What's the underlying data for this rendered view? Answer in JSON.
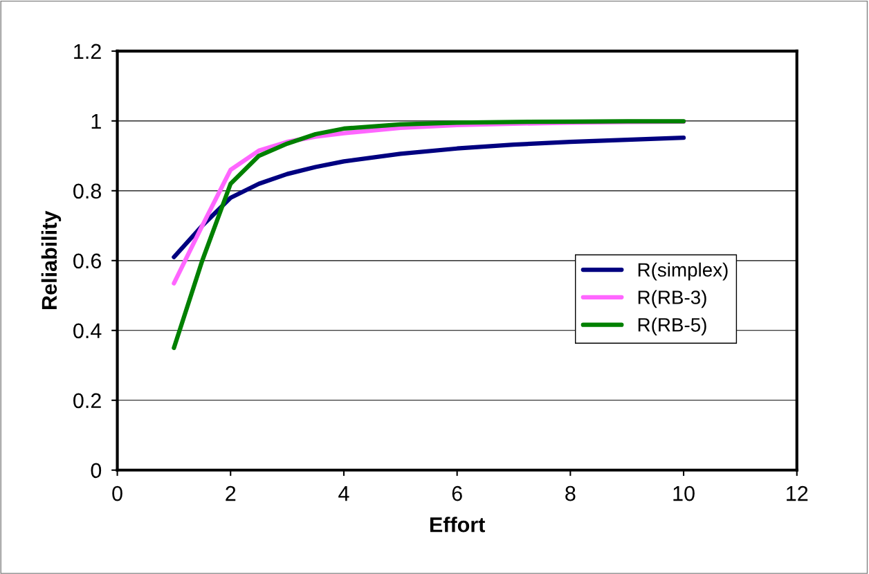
{
  "chart_data": {
    "type": "line",
    "xlabel": "Effort",
    "ylabel": "Reliability",
    "x": [
      1,
      1.5,
      2,
      2.5,
      3,
      3.5,
      4,
      5,
      6,
      7,
      8,
      9,
      10
    ],
    "series": [
      {
        "name": "R(simplex)",
        "color": "#000080",
        "values": [
          0.61,
          0.7,
          0.78,
          0.82,
          0.848,
          0.868,
          0.884,
          0.906,
          0.921,
          0.932,
          0.94,
          0.946,
          0.952
        ]
      },
      {
        "name": "R(RB-3)",
        "color": "#ff66ff",
        "values": [
          0.535,
          0.7,
          0.86,
          0.915,
          0.94,
          0.955,
          0.965,
          0.98,
          0.988,
          0.992,
          0.995,
          0.997,
          0.998
        ]
      },
      {
        "name": "R(RB-5)",
        "color": "#008000",
        "values": [
          0.35,
          0.6,
          0.82,
          0.9,
          0.935,
          0.962,
          0.978,
          0.99,
          0.995,
          0.997,
          0.998,
          0.999,
          0.999
        ]
      }
    ],
    "xlim": [
      0,
      12
    ],
    "xticks": [
      0,
      2,
      4,
      6,
      8,
      10,
      12
    ],
    "ylim": [
      0,
      1.2
    ],
    "yticks": [
      0,
      0.2,
      0.4,
      0.6,
      0.8,
      1,
      1.2
    ],
    "grid": "y",
    "legend": "right",
    "marker": "none",
    "line_style": "solid"
  }
}
